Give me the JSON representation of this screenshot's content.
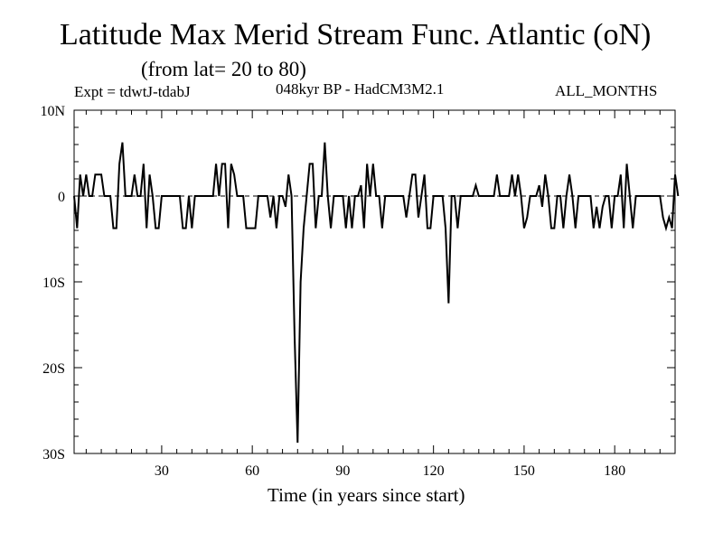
{
  "chart_data": {
    "type": "line",
    "title": "Latitude Max Merid Stream Func. Atlantic (oN)",
    "subtitle": "(from lat= 20 to 80)",
    "annotation_left": "Expt = tdwtJ-tdabJ",
    "annotation_center": "048kyr BP - HadCM3M2.1",
    "annotation_right": "ALL_MONTHS",
    "xlabel": "Time (in years since start)",
    "ylabel": "",
    "xlim": [
      1,
      200
    ],
    "ylim": [
      -30,
      10
    ],
    "x_ticks": [
      30,
      60,
      90,
      120,
      150,
      180
    ],
    "x_tick_labels": [
      "30",
      "60",
      "90",
      "120",
      "150",
      "180"
    ],
    "y_ticks": [
      10,
      0,
      -10,
      -20,
      -30
    ],
    "y_tick_labels": [
      "10N",
      "0",
      "10S",
      "20S",
      "30S"
    ],
    "reference_line": 0,
    "series": [
      {
        "name": "Latitude Max Merid Stream Func.",
        "values": [
          0,
          -3.75,
          2.5,
          0,
          2.5,
          0,
          0,
          2.5,
          2.5,
          2.5,
          0,
          0,
          0,
          -3.75,
          -3.75,
          3.75,
          6.25,
          0,
          0,
          0,
          2.5,
          0,
          0,
          3.75,
          -3.75,
          2.5,
          0,
          -3.75,
          -3.75,
          0,
          0,
          0,
          0,
          0,
          0,
          0,
          -3.75,
          -3.75,
          0,
          -3.75,
          0,
          0,
          0,
          0,
          0,
          0,
          0,
          3.75,
          0,
          3.75,
          3.75,
          -3.75,
          3.75,
          2.5,
          0,
          0,
          0,
          -3.75,
          -3.75,
          -3.75,
          -3.75,
          0,
          0,
          0,
          0,
          -2.5,
          0,
          -3.75,
          0,
          0,
          -1.25,
          2.5,
          0,
          -16.25,
          -28.75,
          -10,
          -3.75,
          0,
          3.75,
          3.75,
          -3.75,
          0,
          0,
          6.25,
          0,
          -3.75,
          0,
          0,
          0,
          0,
          -3.75,
          0,
          -3.75,
          0,
          0,
          1.25,
          -3.75,
          3.75,
          0,
          3.75,
          0,
          0,
          -3.75,
          0,
          0,
          0,
          0,
          0,
          0,
          0,
          -2.5,
          0,
          2.5,
          2.5,
          -2.5,
          0,
          2.5,
          -3.75,
          -3.75,
          0,
          0,
          0,
          0,
          -3.75,
          -12.5,
          0,
          0,
          -3.75,
          0,
          0,
          0,
          0,
          0,
          1.25,
          0,
          0,
          0,
          0,
          0,
          0,
          2.5,
          0,
          0,
          0,
          0,
          2.5,
          0,
          2.5,
          0,
          -3.75,
          -2.5,
          0,
          0,
          0,
          1.25,
          -1.25,
          2.5,
          0,
          -3.75,
          -3.75,
          0,
          0,
          -3.75,
          0,
          2.5,
          0,
          -3.75,
          0,
          0,
          0,
          0,
          0,
          -3.75,
          -1.25,
          -3.75,
          -1.25,
          0,
          0,
          -3.75,
          0,
          0,
          2.5,
          -3.75,
          3.75,
          0,
          -3.75,
          0,
          0,
          0,
          0,
          0,
          0,
          0,
          0,
          0,
          -2.5,
          -3.75,
          -2.5,
          -3.75,
          2.5,
          0
        ]
      }
    ]
  }
}
